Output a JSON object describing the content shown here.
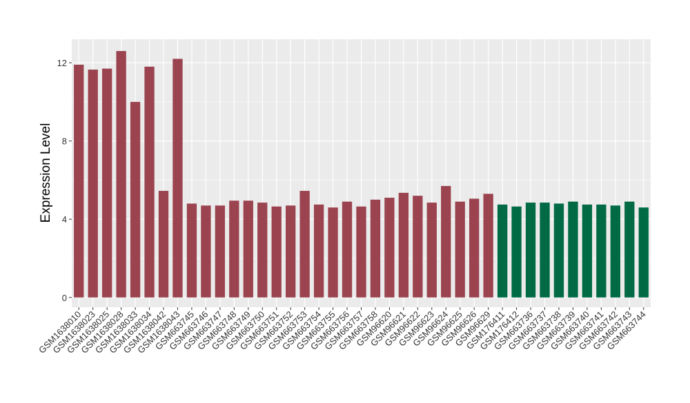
{
  "chart_data": {
    "type": "bar",
    "title": "",
    "xlabel": "",
    "ylabel": "Expression Level",
    "ylim": [
      -0.5,
      13.2
    ],
    "yticks": [
      0,
      4,
      8,
      12
    ],
    "grid": true,
    "legend": "none",
    "colors": {
      "group1": "#9b4450",
      "group2": "#006a45",
      "panel": "#ebebeb",
      "grid": "#ffffff"
    },
    "categories": [
      "GSM1638010",
      "GSM1638023",
      "GSM1638025",
      "GSM1638028",
      "GSM1638033",
      "GSM1638034",
      "GSM1638042",
      "GSM1638043",
      "GSM663745",
      "GSM663746",
      "GSM663747",
      "GSM663748",
      "GSM663749",
      "GSM663750",
      "GSM663751",
      "GSM663752",
      "GSM663753",
      "GSM663754",
      "GSM663755",
      "GSM663756",
      "GSM663757",
      "GSM663758",
      "GSM96620",
      "GSM96621",
      "GSM96622",
      "GSM96623",
      "GSM96624",
      "GSM96625",
      "GSM96626",
      "GSM96629",
      "GSM176411",
      "GSM176412",
      "GSM663736",
      "GSM663737",
      "GSM663738",
      "GSM663739",
      "GSM663740",
      "GSM663741",
      "GSM663742",
      "GSM663743",
      "GSM663744"
    ],
    "values": [
      11.9,
      11.65,
      11.7,
      12.6,
      10.0,
      11.8,
      5.45,
      12.2,
      4.8,
      4.7,
      4.7,
      4.95,
      4.95,
      4.85,
      4.65,
      4.7,
      5.45,
      4.75,
      4.6,
      4.9,
      4.65,
      5.0,
      5.1,
      5.35,
      5.2,
      4.85,
      5.7,
      4.9,
      5.05,
      5.3,
      4.75,
      4.65,
      4.85,
      4.85,
      4.8,
      4.9,
      4.75,
      4.75,
      4.7,
      4.9,
      4.6
    ],
    "groups": [
      1,
      1,
      1,
      1,
      1,
      1,
      1,
      1,
      1,
      1,
      1,
      1,
      1,
      1,
      1,
      1,
      1,
      1,
      1,
      1,
      1,
      1,
      1,
      1,
      1,
      1,
      1,
      1,
      1,
      1,
      2,
      2,
      2,
      2,
      2,
      2,
      2,
      2,
      2,
      2,
      2
    ]
  }
}
